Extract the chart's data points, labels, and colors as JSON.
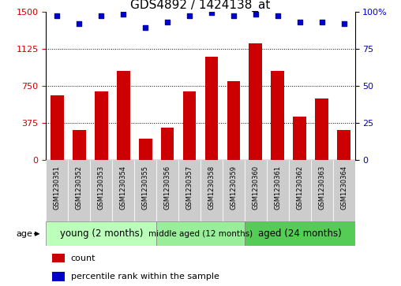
{
  "title": "GDS4892 / 1424138_at",
  "samples": [
    "GSM1230351",
    "GSM1230352",
    "GSM1230353",
    "GSM1230354",
    "GSM1230355",
    "GSM1230356",
    "GSM1230357",
    "GSM1230358",
    "GSM1230359",
    "GSM1230360",
    "GSM1230361",
    "GSM1230362",
    "GSM1230363",
    "GSM1230364"
  ],
  "counts": [
    650,
    305,
    690,
    900,
    215,
    330,
    690,
    1040,
    800,
    1175,
    900,
    440,
    620,
    305
  ],
  "percentiles": [
    97,
    92,
    97,
    98,
    89,
    93,
    97,
    99,
    97,
    98,
    97,
    93,
    93,
    92
  ],
  "ylim_left": [
    0,
    1500
  ],
  "ylim_right": [
    0,
    100
  ],
  "yticks_left": [
    0,
    375,
    750,
    1125,
    1500
  ],
  "yticks_right": [
    0,
    25,
    50,
    75,
    100
  ],
  "bar_color": "#cc0000",
  "dot_color": "#0000cc",
  "groups": [
    {
      "label": "young (2 months)",
      "start": 0,
      "end": 5,
      "color": "#bbffbb"
    },
    {
      "label": "middle aged (12 months)",
      "start": 5,
      "end": 9,
      "color": "#99ee99"
    },
    {
      "label": "aged (24 months)",
      "start": 9,
      "end": 14,
      "color": "#55cc55"
    }
  ],
  "group_header": "age",
  "legend_count_label": "count",
  "legend_pct_label": "percentile rank within the sample",
  "background_color": "#ffffff",
  "grid_color": "#000000",
  "sample_box_color": "#cccccc",
  "title_fontsize": 11,
  "tick_fontsize": 8,
  "sample_fontsize": 6,
  "group_fontsize": 8,
  "legend_fontsize": 8
}
